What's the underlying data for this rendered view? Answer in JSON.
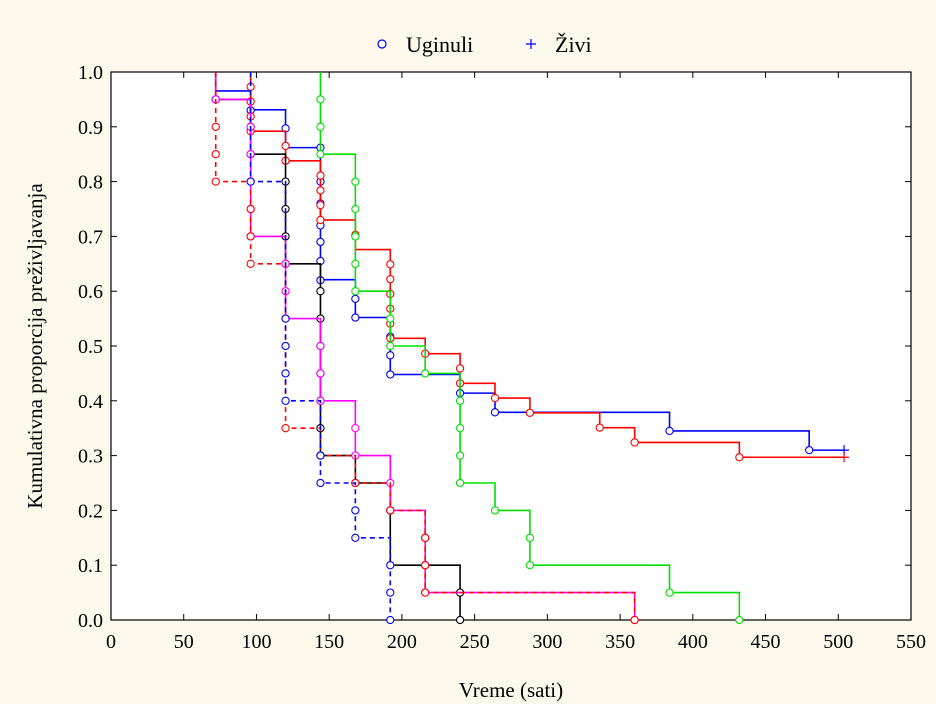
{
  "chart_data": {
    "type": "line",
    "title": "",
    "xlabel": "Vreme (sati)",
    "ylabel": "Kumulativna proporcija preživljavanja",
    "xlim": [
      0,
      550
    ],
    "ylim": [
      0,
      1
    ],
    "x_ticks": [
      0,
      50,
      100,
      150,
      200,
      250,
      300,
      350,
      400,
      450,
      500,
      550
    ],
    "y_ticks": [
      0.0,
      0.1,
      0.2,
      0.3,
      0.4,
      0.5,
      0.6,
      0.7,
      0.8,
      0.9,
      1.0
    ],
    "x_tick_labels": [
      "0",
      "50",
      "100",
      "150",
      "200",
      "250",
      "300",
      "350",
      "400",
      "450",
      "500",
      "550"
    ],
    "y_tick_labels": [
      "0.0",
      "0.1",
      "0.2",
      "0.3",
      "0.4",
      "0.5",
      "0.6",
      "0.7",
      "0.8",
      "0.9",
      "1.0"
    ],
    "grid": false,
    "legend_position": "top-center",
    "legend": [
      {
        "label": "Uginuli",
        "marker": "circle",
        "color": "#0000ff"
      },
      {
        "label": "Živi",
        "marker": "plus",
        "color": "#0000ff"
      }
    ],
    "series": [
      {
        "color": "#0000ff",
        "dash": "",
        "steps": [
          [
            72,
            0.9655
          ],
          [
            96,
            0.931
          ],
          [
            120,
            0.862
          ],
          [
            144,
            0.621
          ],
          [
            168,
            0.552
          ],
          [
            192,
            0.448
          ],
          [
            240,
            0.414
          ],
          [
            264,
            0.379
          ],
          [
            384,
            0.345
          ],
          [
            480,
            0.31
          ],
          [
            504,
            0.31
          ]
        ],
        "events": [
          [
            72,
            0.95
          ],
          [
            96,
            0.93
          ],
          [
            120,
            0.897
          ],
          [
            144,
            0.862
          ],
          [
            144,
            0.8
          ],
          [
            144,
            0.76
          ],
          [
            144,
            0.72
          ],
          [
            144,
            0.69
          ],
          [
            144,
            0.655
          ],
          [
            144,
            0.62
          ],
          [
            168,
            0.586
          ],
          [
            168,
            0.552
          ],
          [
            192,
            0.517
          ],
          [
            192,
            0.483
          ],
          [
            192,
            0.448
          ],
          [
            240,
            0.414
          ],
          [
            264,
            0.379
          ],
          [
            384,
            0.345
          ],
          [
            480,
            0.31
          ]
        ],
        "censored": [
          [
            504,
            0.31
          ]
        ]
      },
      {
        "color": "#ff0000",
        "dash": "",
        "steps": [
          [
            96,
            0.892
          ],
          [
            120,
            0.838
          ],
          [
            144,
            0.73
          ],
          [
            168,
            0.676
          ],
          [
            192,
            0.514
          ],
          [
            216,
            0.486
          ],
          [
            240,
            0.432
          ],
          [
            264,
            0.405
          ],
          [
            288,
            0.378
          ],
          [
            336,
            0.351
          ],
          [
            360,
            0.324
          ],
          [
            432,
            0.297
          ],
          [
            504,
            0.297
          ]
        ],
        "events": [
          [
            96,
            0.973
          ],
          [
            96,
            0.946
          ],
          [
            96,
            0.919
          ],
          [
            96,
            0.892
          ],
          [
            120,
            0.865
          ],
          [
            120,
            0.838
          ],
          [
            144,
            0.811
          ],
          [
            144,
            0.784
          ],
          [
            144,
            0.757
          ],
          [
            144,
            0.73
          ],
          [
            168,
            0.703
          ],
          [
            192,
            0.649
          ],
          [
            192,
            0.622
          ],
          [
            192,
            0.595
          ],
          [
            192,
            0.568
          ],
          [
            192,
            0.541
          ],
          [
            192,
            0.514
          ],
          [
            216,
            0.486
          ],
          [
            240,
            0.459
          ],
          [
            240,
            0.432
          ],
          [
            264,
            0.405
          ],
          [
            288,
            0.378
          ],
          [
            336,
            0.351
          ],
          [
            360,
            0.324
          ],
          [
            432,
            0.297
          ]
        ],
        "censored": [
          [
            504,
            0.297
          ]
        ]
      },
      {
        "color": "#00e000",
        "dash": "",
        "steps": [
          [
            144,
            0.85
          ],
          [
            168,
            0.6
          ],
          [
            192,
            0.5
          ],
          [
            216,
            0.45
          ],
          [
            240,
            0.25
          ],
          [
            264,
            0.2
          ],
          [
            288,
            0.1
          ],
          [
            384,
            0.05
          ],
          [
            432,
            0.0
          ]
        ],
        "events": [
          [
            144,
            0.95
          ],
          [
            144,
            0.9
          ],
          [
            144,
            0.85
          ],
          [
            168,
            0.8
          ],
          [
            168,
            0.75
          ],
          [
            168,
            0.7
          ],
          [
            168,
            0.65
          ],
          [
            168,
            0.6
          ],
          [
            192,
            0.55
          ],
          [
            192,
            0.5
          ],
          [
            216,
            0.45
          ],
          [
            240,
            0.4
          ],
          [
            240,
            0.35
          ],
          [
            240,
            0.3
          ],
          [
            240,
            0.25
          ],
          [
            264,
            0.2
          ],
          [
            288,
            0.15
          ],
          [
            288,
            0.1
          ],
          [
            384,
            0.05
          ],
          [
            432,
            0.0
          ]
        ],
        "censored": []
      },
      {
        "color": "#000000",
        "dash": "",
        "steps": [
          [
            72,
            0.95
          ],
          [
            96,
            0.85
          ],
          [
            120,
            0.65
          ],
          [
            144,
            0.3
          ],
          [
            168,
            0.25
          ],
          [
            192,
            0.1
          ],
          [
            240,
            0.0
          ]
        ],
        "events": [
          [
            72,
            0.95
          ],
          [
            96,
            0.9
          ],
          [
            96,
            0.85
          ],
          [
            120,
            0.8
          ],
          [
            120,
            0.75
          ],
          [
            120,
            0.7
          ],
          [
            120,
            0.65
          ],
          [
            144,
            0.6
          ],
          [
            144,
            0.55
          ],
          [
            144,
            0.5
          ],
          [
            144,
            0.45
          ],
          [
            144,
            0.4
          ],
          [
            144,
            0.35
          ],
          [
            144,
            0.3
          ],
          [
            168,
            0.25
          ],
          [
            192,
            0.2
          ],
          [
            216,
            0.15
          ],
          [
            216,
            0.1
          ],
          [
            240,
            0.05
          ],
          [
            240,
            0.0
          ]
        ],
        "censored": []
      },
      {
        "color": "#ff00ff",
        "dash": "",
        "steps": [
          [
            72,
            0.95
          ],
          [
            96,
            0.7
          ],
          [
            120,
            0.55
          ],
          [
            144,
            0.4
          ],
          [
            168,
            0.3
          ],
          [
            192,
            0.2
          ],
          [
            216,
            0.05
          ],
          [
            360,
            0.0
          ]
        ],
        "events": [
          [
            72,
            0.95
          ],
          [
            96,
            0.9
          ],
          [
            96,
            0.85
          ],
          [
            96,
            0.8
          ],
          [
            96,
            0.75
          ],
          [
            96,
            0.7
          ],
          [
            120,
            0.65
          ],
          [
            120,
            0.6
          ],
          [
            120,
            0.55
          ],
          [
            144,
            0.5
          ],
          [
            144,
            0.45
          ],
          [
            144,
            0.4
          ],
          [
            168,
            0.35
          ],
          [
            168,
            0.3
          ],
          [
            192,
            0.25
          ],
          [
            192,
            0.2
          ],
          [
            216,
            0.15
          ],
          [
            216,
            0.1
          ],
          [
            216,
            0.05
          ],
          [
            360,
            0.0
          ]
        ],
        "censored": []
      },
      {
        "color": "#ff0000",
        "dash": "5,4",
        "steps": [
          [
            72,
            0.8
          ],
          [
            96,
            0.65
          ],
          [
            120,
            0.35
          ],
          [
            144,
            0.3
          ],
          [
            168,
            0.25
          ],
          [
            192,
            0.2
          ],
          [
            216,
            0.05
          ],
          [
            360,
            0.0
          ]
        ],
        "events": [
          [
            72,
            0.9
          ],
          [
            72,
            0.85
          ],
          [
            72,
            0.8
          ],
          [
            96,
            0.75
          ],
          [
            96,
            0.7
          ],
          [
            96,
            0.65
          ],
          [
            120,
            0.35
          ],
          [
            144,
            0.3
          ],
          [
            168,
            0.25
          ],
          [
            192,
            0.2
          ],
          [
            216,
            0.15
          ],
          [
            216,
            0.1
          ],
          [
            216,
            0.05
          ],
          [
            360,
            0.0
          ]
        ],
        "censored": []
      },
      {
        "color": "#0000ff",
        "dash": "5,4",
        "steps": [
          [
            96,
            0.8
          ],
          [
            120,
            0.4
          ],
          [
            144,
            0.25
          ],
          [
            168,
            0.15
          ],
          [
            192,
            0.0
          ]
        ],
        "events": [
          [
            96,
            0.8
          ],
          [
            120,
            0.55
          ],
          [
            120,
            0.5
          ],
          [
            120,
            0.45
          ],
          [
            120,
            0.4
          ],
          [
            144,
            0.3
          ],
          [
            144,
            0.25
          ],
          [
            168,
            0.2
          ],
          [
            168,
            0.15
          ],
          [
            192,
            0.1
          ],
          [
            192,
            0.05
          ],
          [
            192,
            0.0
          ]
        ],
        "censored": []
      }
    ]
  }
}
